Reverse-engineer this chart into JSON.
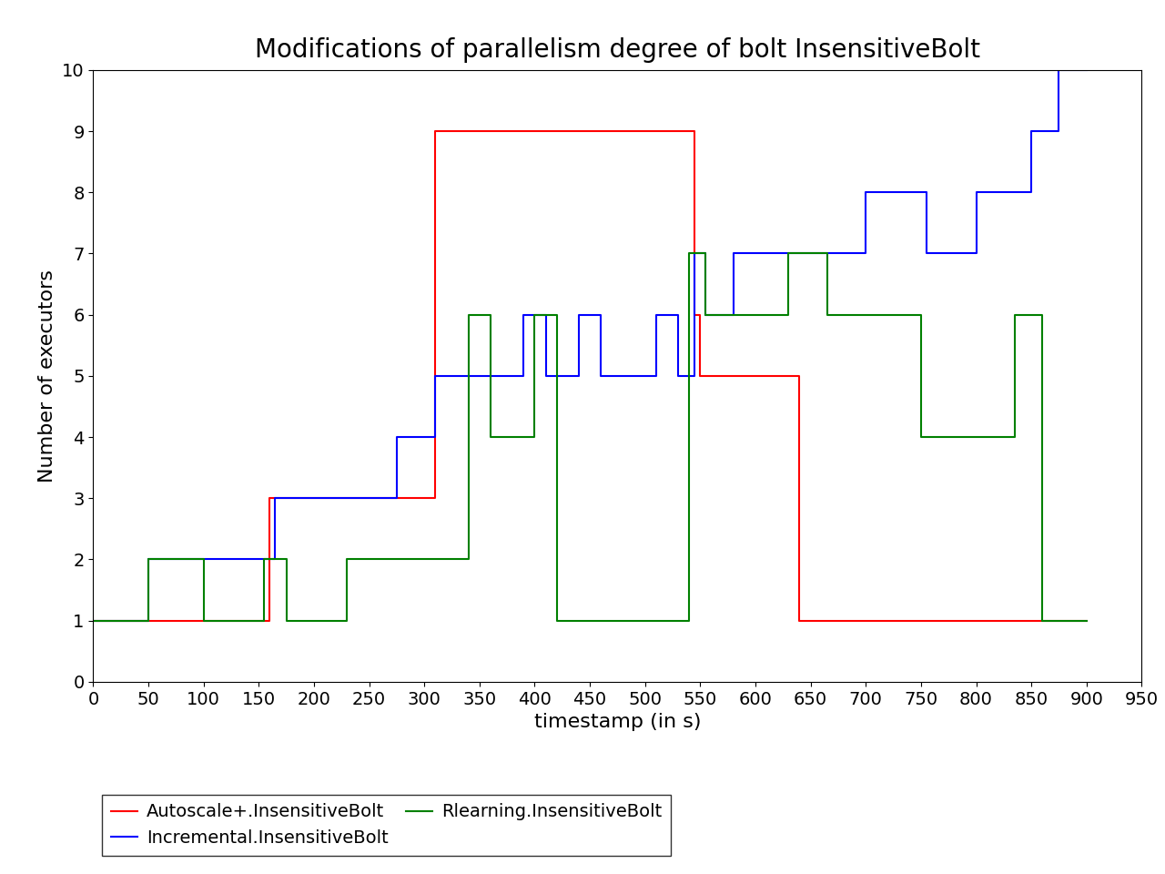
{
  "title": "Modifications of parallelism degree of bolt InsensitiveBolt",
  "xlabel": "timestamp (in s)",
  "ylabel": "Number of executors",
  "xlim": [
    0,
    950
  ],
  "ylim": [
    0,
    10
  ],
  "xticks": [
    0,
    50,
    100,
    150,
    200,
    250,
    300,
    350,
    400,
    450,
    500,
    550,
    600,
    650,
    700,
    750,
    800,
    850,
    900,
    950
  ],
  "yticks": [
    0,
    1,
    2,
    3,
    4,
    5,
    6,
    7,
    8,
    9,
    10
  ],
  "red_x": [
    0,
    100,
    100,
    160,
    160,
    185,
    185,
    310,
    310,
    340,
    340,
    545,
    545,
    550,
    550,
    640,
    640,
    900,
    900
  ],
  "red_y": [
    1,
    1,
    1,
    1,
    3,
    3,
    3,
    3,
    9,
    9,
    9,
    9,
    6,
    6,
    5,
    5,
    1,
    1,
    1
  ],
  "blue_x": [
    0,
    50,
    50,
    100,
    100,
    165,
    165,
    275,
    275,
    310,
    310,
    390,
    390,
    410,
    410,
    440,
    440,
    460,
    460,
    510,
    510,
    530,
    530,
    545,
    545,
    555,
    555,
    580,
    580,
    640,
    640,
    700,
    700,
    755,
    755,
    800,
    800,
    850,
    850,
    875,
    875,
    900
  ],
  "blue_y": [
    1,
    1,
    2,
    2,
    2,
    2,
    3,
    3,
    4,
    4,
    5,
    5,
    6,
    6,
    5,
    5,
    6,
    6,
    5,
    5,
    6,
    6,
    5,
    5,
    7,
    7,
    6,
    6,
    7,
    7,
    7,
    7,
    8,
    8,
    7,
    7,
    8,
    8,
    9,
    9,
    10,
    10
  ],
  "green_x": [
    0,
    50,
    50,
    100,
    100,
    155,
    155,
    175,
    175,
    230,
    230,
    340,
    340,
    360,
    360,
    400,
    400,
    420,
    420,
    540,
    540,
    555,
    555,
    630,
    630,
    665,
    665,
    750,
    750,
    835,
    835,
    860,
    860,
    900
  ],
  "green_y": [
    1,
    1,
    2,
    2,
    1,
    1,
    2,
    2,
    1,
    1,
    2,
    2,
    6,
    6,
    4,
    4,
    6,
    6,
    1,
    1,
    7,
    7,
    6,
    6,
    7,
    7,
    6,
    6,
    4,
    4,
    6,
    6,
    1,
    1
  ],
  "red_color": "#ff0000",
  "blue_color": "#0000ff",
  "green_color": "#008000",
  "legend_labels": [
    "Autoscale+.InsensitiveBolt",
    "Incremental.InsensitiveBolt",
    "Rlearning.InsensitiveBolt"
  ],
  "legend_colors": [
    "#ff0000",
    "#0000ff",
    "#008000"
  ],
  "title_fontsize": 20,
  "label_fontsize": 16,
  "tick_fontsize": 14,
  "legend_fontsize": 14,
  "linewidth": 1.5
}
